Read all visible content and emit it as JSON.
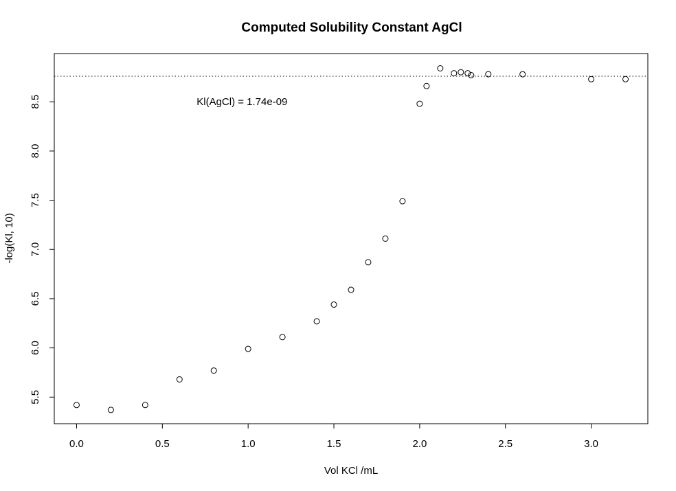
{
  "chart_data": {
    "type": "scatter",
    "title": "Computed Solubility Constant AgCl",
    "xlabel": "Vol KCl /mL",
    "ylabel": "-log(Kl, 10)",
    "xlim": [
      -0.13,
      3.33
    ],
    "ylim": [
      5.23,
      8.99
    ],
    "x_ticks": [
      0.0,
      0.5,
      1.0,
      1.5,
      2.0,
      2.5,
      3.0
    ],
    "x_tick_labels": [
      "0.0",
      "0.5",
      "1.0",
      "1.5",
      "2.0",
      "2.5",
      "3.0"
    ],
    "y_ticks": [
      5.5,
      6.0,
      6.5,
      7.0,
      7.5,
      8.0,
      8.5
    ],
    "y_tick_labels": [
      "5.5",
      "6.0",
      "6.5",
      "7.0",
      "7.5",
      "8.0",
      "8.5"
    ],
    "grid": false,
    "marker": "open-circle",
    "reference_line": {
      "y": 8.76,
      "style": "dotted"
    },
    "annotation": {
      "text": "Kl(AgCl) =  1.74e-09",
      "x": 0.7,
      "y": 8.5
    },
    "points": [
      {
        "x": 0.0,
        "y": 5.42
      },
      {
        "x": 0.2,
        "y": 5.37
      },
      {
        "x": 0.4,
        "y": 5.42
      },
      {
        "x": 0.6,
        "y": 5.68
      },
      {
        "x": 0.8,
        "y": 5.77
      },
      {
        "x": 1.0,
        "y": 5.99
      },
      {
        "x": 1.2,
        "y": 6.11
      },
      {
        "x": 1.4,
        "y": 6.27
      },
      {
        "x": 1.5,
        "y": 6.44
      },
      {
        "x": 1.6,
        "y": 6.59
      },
      {
        "x": 1.7,
        "y": 6.87
      },
      {
        "x": 1.8,
        "y": 7.11
      },
      {
        "x": 1.9,
        "y": 7.49
      },
      {
        "x": 2.0,
        "y": 8.48
      },
      {
        "x": 2.04,
        "y": 8.66
      },
      {
        "x": 2.12,
        "y": 8.84
      },
      {
        "x": 2.2,
        "y": 8.79
      },
      {
        "x": 2.24,
        "y": 8.8
      },
      {
        "x": 2.28,
        "y": 8.79
      },
      {
        "x": 2.3,
        "y": 8.77
      },
      {
        "x": 2.4,
        "y": 8.78
      },
      {
        "x": 2.6,
        "y": 8.78
      },
      {
        "x": 3.0,
        "y": 8.73
      },
      {
        "x": 3.2,
        "y": 8.73
      }
    ]
  }
}
